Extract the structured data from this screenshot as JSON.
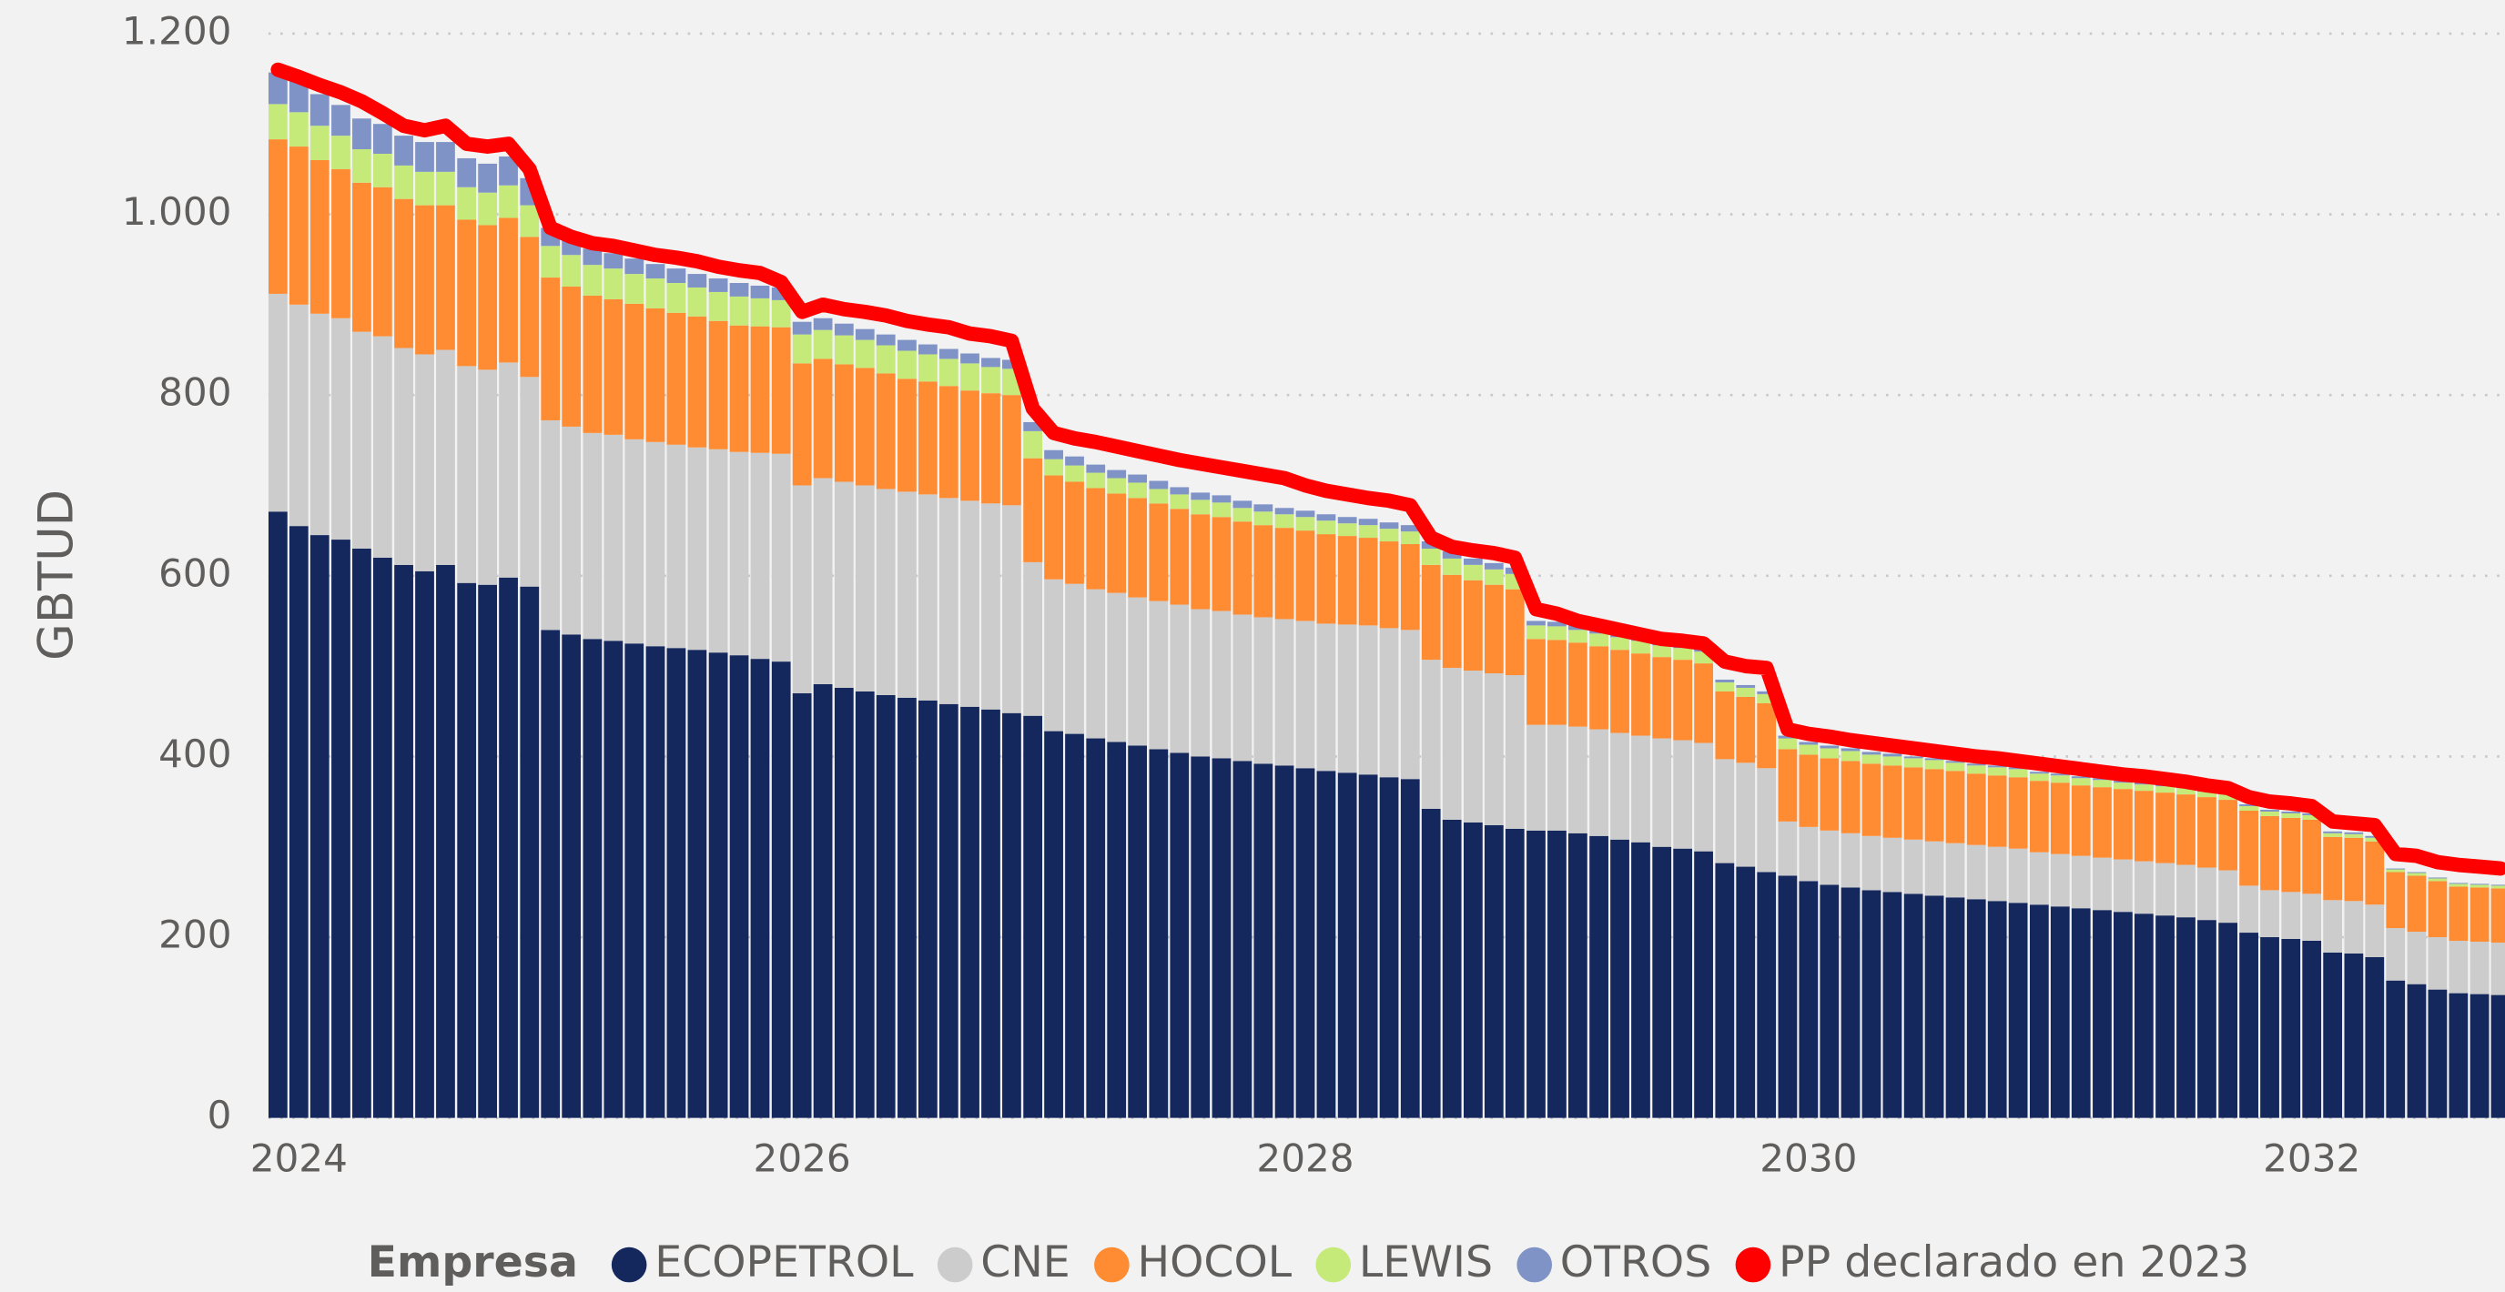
{
  "chart_data": {
    "type": "bar",
    "stacked": true,
    "ylabel": "GBTUD",
    "legend_title": "Empresa",
    "legend": "bottom",
    "grid": true,
    "xlim": [
      2023.879,
      2032.768
    ],
    "xticks": [
      2024,
      2026,
      2028,
      2030,
      2032
    ],
    "ylim": [
      0,
      1200
    ],
    "yticks": [
      0,
      200,
      400,
      600,
      800,
      {
        "value": 1000,
        "label": "1.000"
      },
      {
        "value": 1200,
        "label": "1.200"
      }
    ],
    "x": [
      2023.917,
      2024.0,
      2024.083,
      2024.167,
      2024.25,
      2024.333,
      2024.417,
      2024.5,
      2024.583,
      2024.667,
      2024.75,
      2024.833,
      2024.917,
      2025.0,
      2025.083,
      2025.167,
      2025.25,
      2025.333,
      2025.417,
      2025.5,
      2025.583,
      2025.667,
      2025.75,
      2025.833,
      2025.917,
      2026.0,
      2026.083,
      2026.167,
      2026.25,
      2026.333,
      2026.417,
      2026.5,
      2026.583,
      2026.667,
      2026.75,
      2026.833,
      2026.917,
      2027.0,
      2027.083,
      2027.167,
      2027.25,
      2027.333,
      2027.417,
      2027.5,
      2027.583,
      2027.667,
      2027.75,
      2027.833,
      2027.917,
      2028.0,
      2028.083,
      2028.167,
      2028.25,
      2028.333,
      2028.417,
      2028.5,
      2028.583,
      2028.667,
      2028.75,
      2028.833,
      2028.917,
      2029.0,
      2029.083,
      2029.167,
      2029.25,
      2029.333,
      2029.417,
      2029.5,
      2029.583,
      2029.667,
      2029.75,
      2029.833,
      2029.917,
      2030.0,
      2030.083,
      2030.167,
      2030.25,
      2030.333,
      2030.417,
      2030.5,
      2030.583,
      2030.667,
      2030.75,
      2030.833,
      2030.917,
      2031.0,
      2031.083,
      2031.167,
      2031.25,
      2031.333,
      2031.417,
      2031.5,
      2031.583,
      2031.667,
      2031.75,
      2031.833,
      2031.917,
      2032.0,
      2032.083,
      2032.167,
      2032.25,
      2032.333,
      2032.417,
      2032.5,
      2032.583,
      2032.667,
      2032.75
    ],
    "series": [
      {
        "name": "ECOPETROL",
        "color": "#14285e",
        "type": "bar",
        "values": [
          671,
          655,
          645,
          640,
          630,
          620,
          612,
          605,
          612,
          592,
          590,
          598,
          588,
          540,
          535,
          530,
          528,
          525,
          522,
          520,
          518,
          515,
          512,
          508,
          505,
          470,
          480,
          476,
          472,
          468,
          465,
          462,
          458,
          455,
          452,
          448,
          445,
          428,
          425,
          420,
          416,
          412,
          408,
          404,
          400,
          398,
          395,
          392,
          390,
          387,
          384,
          382,
          380,
          377,
          375,
          342,
          330,
          327,
          324,
          320,
          318,
          318,
          315,
          312,
          308,
          305,
          300,
          298,
          295,
          282,
          278,
          272,
          268,
          262,
          258,
          255,
          252,
          250,
          248,
          246,
          244,
          242,
          240,
          238,
          236,
          234,
          232,
          230,
          228,
          226,
          224,
          222,
          219,
          216,
          205,
          200,
          198,
          196,
          183,
          182,
          178,
          152,
          148,
          142,
          138,
          137,
          136
        ]
      },
      {
        "name": "CNE",
        "color": "#cccccc",
        "type": "bar",
        "values": [
          241,
          245,
          245,
          245,
          240,
          245,
          240,
          240,
          238,
          240,
          238,
          238,
          232,
          232,
          230,
          228,
          228,
          226,
          226,
          225,
          224,
          225,
          225,
          228,
          230,
          230,
          228,
          228,
          228,
          228,
          228,
          228,
          228,
          228,
          228,
          230,
          170,
          168,
          166,
          165,
          165,
          164,
          164,
          164,
          163,
          163,
          162,
          162,
          162,
          163,
          163,
          164,
          165,
          165,
          165,
          165,
          168,
          168,
          168,
          170,
          117,
          117,
          118,
          118,
          118,
          118,
          120,
          120,
          120,
          115,
          115,
          115,
          60,
          60,
          60,
          60,
          60,
          60,
          60,
          60,
          60,
          60,
          60,
          60,
          58,
          58,
          58,
          58,
          58,
          58,
          58,
          58,
          58,
          58,
          52,
          52,
          52,
          52,
          58,
          58,
          58,
          58,
          58,
          58,
          58,
          58,
          58
        ]
      },
      {
        "name": "HOCOL",
        "color": "#ff8c33",
        "type": "bar",
        "values": [
          171,
          175,
          170,
          165,
          165,
          165,
          165,
          165,
          160,
          162,
          160,
          160,
          155,
          158,
          155,
          152,
          150,
          150,
          148,
          146,
          145,
          142,
          140,
          140,
          140,
          135,
          132,
          130,
          130,
          128,
          125,
          125,
          124,
          122,
          122,
          122,
          115,
          115,
          113,
          112,
          110,
          110,
          108,
          106,
          105,
          104,
          103,
          102,
          101,
          100,
          99,
          98,
          97,
          96,
          95,
          105,
          103,
          100,
          98,
          95,
          95,
          94,
          93,
          92,
          92,
          91,
          90,
          89,
          88,
          75,
          73,
          72,
          80,
          80,
          80,
          80,
          80,
          80,
          80,
          80,
          80,
          79,
          79,
          79,
          79,
          79,
          78,
          78,
          78,
          78,
          78,
          78,
          78,
          78,
          83,
          82,
          82,
          82,
          70,
          70,
          70,
          62,
          62,
          62,
          60,
          60,
          60
        ]
      },
      {
        "name": "LEWIS",
        "color": "#c5ea7a",
        "type": "bar",
        "values": [
          39,
          38,
          38,
          37,
          37,
          37,
          37,
          37,
          37,
          36,
          36,
          36,
          35,
          35,
          35,
          34,
          34,
          33,
          33,
          33,
          32,
          32,
          32,
          31,
          30,
          32,
          32,
          32,
          31,
          31,
          31,
          30,
          30,
          30,
          29,
          29,
          30,
          18,
          18,
          17,
          17,
          17,
          16,
          16,
          16,
          16,
          15,
          15,
          15,
          15,
          15,
          14,
          14,
          14,
          14,
          18,
          18,
          17,
          17,
          17,
          15,
          15,
          14,
          14,
          14,
          14,
          13,
          13,
          13,
          10,
          10,
          10,
          12,
          11,
          11,
          11,
          10,
          10,
          10,
          10,
          9,
          9,
          9,
          9,
          8,
          8,
          8,
          8,
          7,
          7,
          7,
          7,
          6,
          6,
          5,
          5,
          5,
          5,
          4,
          4,
          4,
          3,
          3,
          3,
          3,
          3,
          3
        ]
      },
      {
        "name": "OTROS",
        "color": "#7f93c6",
        "type": "bar",
        "values": [
          35,
          35,
          35,
          34,
          34,
          33,
          33,
          33,
          33,
          32,
          32,
          32,
          30,
          20,
          18,
          18,
          17,
          17,
          16,
          16,
          15,
          15,
          15,
          14,
          14,
          14,
          13,
          13,
          12,
          12,
          12,
          11,
          11,
          11,
          10,
          10,
          10,
          10,
          10,
          9,
          9,
          9,
          9,
          8,
          8,
          8,
          8,
          8,
          7,
          7,
          7,
          7,
          7,
          7,
          7,
          8,
          8,
          7,
          7,
          7,
          5,
          5,
          5,
          5,
          4,
          4,
          4,
          4,
          4,
          3,
          3,
          3,
          3,
          3,
          3,
          3,
          3,
          3,
          2,
          2,
          2,
          2,
          2,
          2,
          2,
          2,
          2,
          2,
          2,
          2,
          2,
          2,
          2,
          2,
          2,
          2,
          2,
          2,
          2,
          2,
          2,
          1,
          1,
          1,
          1,
          1,
          1
        ]
      },
      {
        "name": "PP declarado en 2023",
        "color": "#ff0000",
        "type": "line",
        "values": [
          1160,
          1152,
          1143,
          1135,
          1125,
          1112,
          1098,
          1093,
          1098,
          1078,
          1075,
          1078,
          1050,
          985,
          975,
          968,
          965,
          960,
          955,
          952,
          948,
          942,
          938,
          935,
          925,
          892,
          900,
          895,
          892,
          888,
          882,
          878,
          875,
          868,
          865,
          860,
          785,
          758,
          752,
          748,
          743,
          738,
          733,
          728,
          724,
          720,
          716,
          712,
          708,
          700,
          694,
          690,
          686,
          683,
          678,
          642,
          632,
          628,
          625,
          620,
          563,
          558,
          550,
          545,
          540,
          535,
          530,
          528,
          525,
          505,
          500,
          498,
          430,
          425,
          422,
          418,
          415,
          412,
          409,
          406,
          403,
          400,
          398,
          395,
          392,
          389,
          386,
          383,
          380,
          378,
          375,
          372,
          368,
          365,
          355,
          350,
          348,
          345,
          328,
          326,
          324,
          292,
          290,
          283,
          280,
          278,
          276
        ]
      }
    ]
  }
}
